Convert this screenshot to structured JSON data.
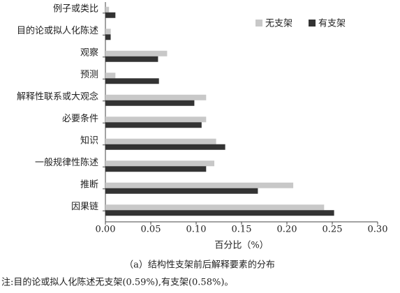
{
  "chart_data": {
    "type": "bar",
    "orientation": "horizontal",
    "categories": [
      "例子或类比",
      "目的论或拟人化陈述",
      "观察",
      "预测",
      "解释性联系或大观念",
      "必要条件",
      "知识",
      "一般规律性陈述",
      "推断",
      "因果链"
    ],
    "series": [
      {
        "name": "无支架",
        "color": "#c8c8c8",
        "values": [
          0.004,
          0.0059,
          0.068,
          0.011,
          0.111,
          0.111,
          0.122,
          0.12,
          0.207,
          0.241
        ]
      },
      {
        "name": "有支架",
        "color": "#333333",
        "values": [
          0.011,
          0.0058,
          0.058,
          0.059,
          0.098,
          0.106,
          0.132,
          0.111,
          0.168,
          0.252
        ]
      }
    ],
    "xlim": [
      0,
      0.3
    ],
    "xticks": [
      {
        "value": 0,
        "label": "0.00"
      },
      {
        "value": 0.05,
        "label": "0.05"
      },
      {
        "value": 0.1,
        "label": "0.10"
      },
      {
        "value": 0.15,
        "label": "0.15"
      },
      {
        "value": 0.2,
        "label": "0.20"
      },
      {
        "value": 0.25,
        "label": "0.25"
      },
      {
        "value": 0.3,
        "label": "0.30"
      }
    ],
    "x_label": "百分比（%）",
    "caption": "（a）结构性支架前后解释要素的分布",
    "note": "注:目的论或拟人化陈述无支架(0.59%),有支架(0.58%)。",
    "legend": "top-right"
  }
}
